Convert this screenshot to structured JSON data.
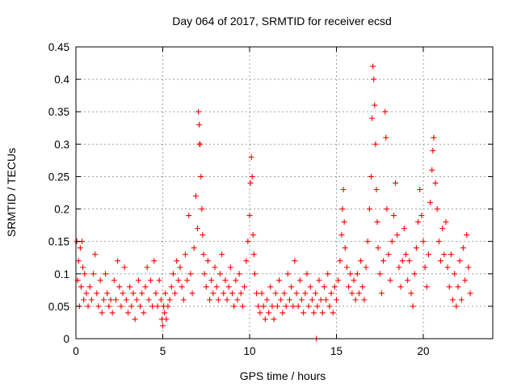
{
  "chart_data": {
    "type": "scatter",
    "title": "Day 064 of 2017, SRMTID for receiver ecsd",
    "xlabel": "GPS time / hours",
    "ylabel": "SRMTID / TECUs",
    "xlim": [
      0,
      24
    ],
    "ylim": [
      0,
      0.45
    ],
    "x_ticks": [
      0,
      5,
      10,
      15,
      20
    ],
    "x_tick_labels": [
      "0",
      "5",
      "10",
      "15",
      "20"
    ],
    "y_ticks": [
      0,
      0.05,
      0.1,
      0.15,
      0.2,
      0.25,
      0.3,
      0.35,
      0.4,
      0.45
    ],
    "y_tick_labels": [
      "0",
      "0.05",
      "0.1",
      "0.15",
      "0.2",
      "0.25",
      "0.3",
      "0.35",
      "0.4",
      "0.45"
    ],
    "grid": true,
    "marker": "+",
    "series": [
      {
        "name": "SRMTID",
        "color": "#ff0000",
        "points": [
          [
            0.05,
            0.15
          ],
          [
            0.1,
            0.09
          ],
          [
            0.15,
            0.12
          ],
          [
            0.2,
            0.05
          ],
          [
            0.25,
            0.14
          ],
          [
            0.3,
            0.08
          ],
          [
            0.35,
            0.15
          ],
          [
            0.4,
            0.11
          ],
          [
            0.45,
            0.06
          ],
          [
            0.5,
            0.1
          ],
          [
            0.6,
            0.07
          ],
          [
            0.7,
            0.05
          ],
          [
            0.8,
            0.08
          ],
          [
            0.9,
            0.06
          ],
          [
            1.0,
            0.1
          ],
          [
            1.1,
            0.13
          ],
          [
            1.2,
            0.07
          ],
          [
            1.3,
            0.05
          ],
          [
            1.4,
            0.09
          ],
          [
            1.5,
            0.04
          ],
          [
            1.6,
            0.06
          ],
          [
            1.7,
            0.1
          ],
          [
            1.8,
            0.07
          ],
          [
            1.9,
            0.05
          ],
          [
            2.0,
            0.06
          ],
          [
            2.1,
            0.04
          ],
          [
            2.2,
            0.09
          ],
          [
            2.3,
            0.06
          ],
          [
            2.4,
            0.12
          ],
          [
            2.5,
            0.08
          ],
          [
            2.6,
            0.05
          ],
          [
            2.7,
            0.07
          ],
          [
            2.8,
            0.11
          ],
          [
            2.9,
            0.06
          ],
          [
            3.0,
            0.04
          ],
          [
            3.1,
            0.08
          ],
          [
            3.2,
            0.05
          ],
          [
            3.3,
            0.07
          ],
          [
            3.4,
            0.03
          ],
          [
            3.5,
            0.06
          ],
          [
            3.6,
            0.09
          ],
          [
            3.7,
            0.05
          ],
          [
            3.8,
            0.07
          ],
          [
            3.9,
            0.04
          ],
          [
            4.0,
            0.08
          ],
          [
            4.1,
            0.11
          ],
          [
            4.2,
            0.06
          ],
          [
            4.3,
            0.09
          ],
          [
            4.4,
            0.05
          ],
          [
            4.5,
            0.12
          ],
          [
            4.6,
            0.07
          ],
          [
            4.7,
            0.05
          ],
          [
            4.8,
            0.09
          ],
          [
            4.9,
            0.06
          ],
          [
            4.95,
            0.03
          ],
          [
            5.0,
            0.02
          ],
          [
            5.05,
            0.05
          ],
          [
            5.1,
            0.04
          ],
          [
            5.15,
            0.07
          ],
          [
            5.2,
            0.03
          ],
          [
            5.3,
            0.05
          ],
          [
            5.4,
            0.06
          ],
          [
            5.5,
            0.08
          ],
          [
            5.6,
            0.1
          ],
          [
            5.7,
            0.07
          ],
          [
            5.8,
            0.12
          ],
          [
            5.9,
            0.09
          ],
          [
            6.0,
            0.11
          ],
          [
            6.1,
            0.08
          ],
          [
            6.2,
            0.06
          ],
          [
            6.3,
            0.13
          ],
          [
            6.4,
            0.09
          ],
          [
            6.5,
            0.19
          ],
          [
            6.6,
            0.1
          ],
          [
            6.7,
            0.07
          ],
          [
            6.8,
            0.14
          ],
          [
            6.9,
            0.22
          ],
          [
            7.0,
            0.17
          ],
          [
            7.05,
            0.35
          ],
          [
            7.1,
            0.33
          ],
          [
            7.12,
            0.3
          ],
          [
            7.15,
            0.3
          ],
          [
            7.2,
            0.25
          ],
          [
            7.25,
            0.2
          ],
          [
            7.3,
            0.16
          ],
          [
            7.35,
            0.13
          ],
          [
            7.4,
            0.1
          ],
          [
            7.5,
            0.08
          ],
          [
            7.6,
            0.12
          ],
          [
            7.7,
            0.06
          ],
          [
            7.8,
            0.09
          ],
          [
            7.9,
            0.07
          ],
          [
            8.0,
            0.11
          ],
          [
            8.1,
            0.08
          ],
          [
            8.2,
            0.06
          ],
          [
            8.3,
            0.1
          ],
          [
            8.4,
            0.13
          ],
          [
            8.5,
            0.07
          ],
          [
            8.6,
            0.09
          ],
          [
            8.7,
            0.06
          ],
          [
            8.8,
            0.08
          ],
          [
            8.9,
            0.11
          ],
          [
            9.0,
            0.07
          ],
          [
            9.1,
            0.05
          ],
          [
            9.2,
            0.09
          ],
          [
            9.3,
            0.06
          ],
          [
            9.4,
            0.1
          ],
          [
            9.5,
            0.07
          ],
          [
            9.6,
            0.05
          ],
          [
            9.7,
            0.08
          ],
          [
            9.8,
            0.12
          ],
          [
            9.9,
            0.15
          ],
          [
            10.0,
            0.19
          ],
          [
            10.05,
            0.24
          ],
          [
            10.1,
            0.28
          ],
          [
            10.15,
            0.25
          ],
          [
            10.2,
            0.16
          ],
          [
            10.25,
            0.13
          ],
          [
            10.3,
            0.1
          ],
          [
            10.4,
            0.07
          ],
          [
            10.5,
            0.05
          ],
          [
            10.6,
            0.04
          ],
          [
            10.7,
            0.07
          ],
          [
            10.8,
            0.05
          ],
          [
            10.9,
            0.03
          ],
          [
            11.0,
            0.06
          ],
          [
            11.1,
            0.04
          ],
          [
            11.2,
            0.08
          ],
          [
            11.3,
            0.05
          ],
          [
            11.4,
            0.03
          ],
          [
            11.5,
            0.07
          ],
          [
            11.6,
            0.05
          ],
          [
            11.7,
            0.09
          ],
          [
            11.8,
            0.06
          ],
          [
            11.9,
            0.04
          ],
          [
            12.0,
            0.07
          ],
          [
            12.1,
            0.05
          ],
          [
            12.2,
            0.1
          ],
          [
            12.3,
            0.06
          ],
          [
            12.4,
            0.08
          ],
          [
            12.5,
            0.05
          ],
          [
            12.6,
            0.12
          ],
          [
            12.7,
            0.07
          ],
          [
            12.8,
            0.05
          ],
          [
            12.9,
            0.09
          ],
          [
            13.0,
            0.06
          ],
          [
            13.1,
            0.04
          ],
          [
            13.2,
            0.07
          ],
          [
            13.3,
            0.1
          ],
          [
            13.4,
            0.05
          ],
          [
            13.5,
            0.08
          ],
          [
            13.6,
            0.06
          ],
          [
            13.7,
            0.04
          ],
          [
            13.8,
            0.07
          ],
          [
            13.85,
            0.0
          ],
          [
            13.9,
            0.05
          ],
          [
            14.0,
            0.09
          ],
          [
            14.1,
            0.06
          ],
          [
            14.2,
            0.04
          ],
          [
            14.3,
            0.08
          ],
          [
            14.4,
            0.06
          ],
          [
            14.5,
            0.1
          ],
          [
            14.6,
            0.05
          ],
          [
            14.7,
            0.07
          ],
          [
            14.8,
            0.04
          ],
          [
            14.9,
            0.08
          ],
          [
            15.0,
            0.06
          ],
          [
            15.1,
            0.09
          ],
          [
            15.2,
            0.12
          ],
          [
            15.3,
            0.16
          ],
          [
            15.35,
            0.2
          ],
          [
            15.4,
            0.23
          ],
          [
            15.45,
            0.18
          ],
          [
            15.5,
            0.14
          ],
          [
            15.6,
            0.11
          ],
          [
            15.7,
            0.08
          ],
          [
            15.8,
            0.1
          ],
          [
            15.9,
            0.07
          ],
          [
            16.0,
            0.09
          ],
          [
            16.1,
            0.06
          ],
          [
            16.2,
            0.1
          ],
          [
            16.3,
            0.07
          ],
          [
            16.4,
            0.12
          ],
          [
            16.5,
            0.08
          ],
          [
            16.6,
            0.06
          ],
          [
            16.7,
            0.11
          ],
          [
            16.8,
            0.15
          ],
          [
            16.9,
            0.2
          ],
          [
            17.0,
            0.25
          ],
          [
            17.05,
            0.34
          ],
          [
            17.1,
            0.42
          ],
          [
            17.15,
            0.4
          ],
          [
            17.2,
            0.36
          ],
          [
            17.25,
            0.3
          ],
          [
            17.3,
            0.23
          ],
          [
            17.35,
            0.18
          ],
          [
            17.4,
            0.14
          ],
          [
            17.5,
            0.1
          ],
          [
            17.6,
            0.07
          ],
          [
            17.7,
            0.12
          ],
          [
            17.8,
            0.35
          ],
          [
            17.85,
            0.31
          ],
          [
            17.9,
            0.2
          ],
          [
            18.0,
            0.13
          ],
          [
            18.1,
            0.09
          ],
          [
            18.2,
            0.15
          ],
          [
            18.3,
            0.19
          ],
          [
            18.4,
            0.24
          ],
          [
            18.5,
            0.16
          ],
          [
            18.6,
            0.11
          ],
          [
            18.7,
            0.08
          ],
          [
            18.8,
            0.12
          ],
          [
            18.9,
            0.17
          ],
          [
            19.0,
            0.13
          ],
          [
            19.1,
            0.09
          ],
          [
            19.2,
            0.12
          ],
          [
            19.3,
            0.07
          ],
          [
            19.4,
            0.05
          ],
          [
            19.5,
            0.1
          ],
          [
            19.6,
            0.14
          ],
          [
            19.7,
            0.18
          ],
          [
            19.8,
            0.23
          ],
          [
            19.9,
            0.19
          ],
          [
            20.0,
            0.15
          ],
          [
            20.1,
            0.11
          ],
          [
            20.2,
            0.08
          ],
          [
            20.3,
            0.13
          ],
          [
            20.4,
            0.21
          ],
          [
            20.5,
            0.26
          ],
          [
            20.55,
            0.29
          ],
          [
            20.6,
            0.31
          ],
          [
            20.7,
            0.24
          ],
          [
            20.8,
            0.2
          ],
          [
            20.9,
            0.15
          ],
          [
            21.0,
            0.12
          ],
          [
            21.1,
            0.17
          ],
          [
            21.2,
            0.13
          ],
          [
            21.3,
            0.18
          ],
          [
            21.4,
            0.11
          ],
          [
            21.5,
            0.08
          ],
          [
            21.6,
            0.13
          ],
          [
            21.7,
            0.06
          ],
          [
            21.8,
            0.1
          ],
          [
            21.9,
            0.05
          ],
          [
            22.0,
            0.08
          ],
          [
            22.1,
            0.12
          ],
          [
            22.2,
            0.06
          ],
          [
            22.3,
            0.14
          ],
          [
            22.4,
            0.09
          ],
          [
            22.5,
            0.16
          ],
          [
            22.6,
            0.11
          ],
          [
            22.7,
            0.07
          ]
        ]
      }
    ]
  }
}
